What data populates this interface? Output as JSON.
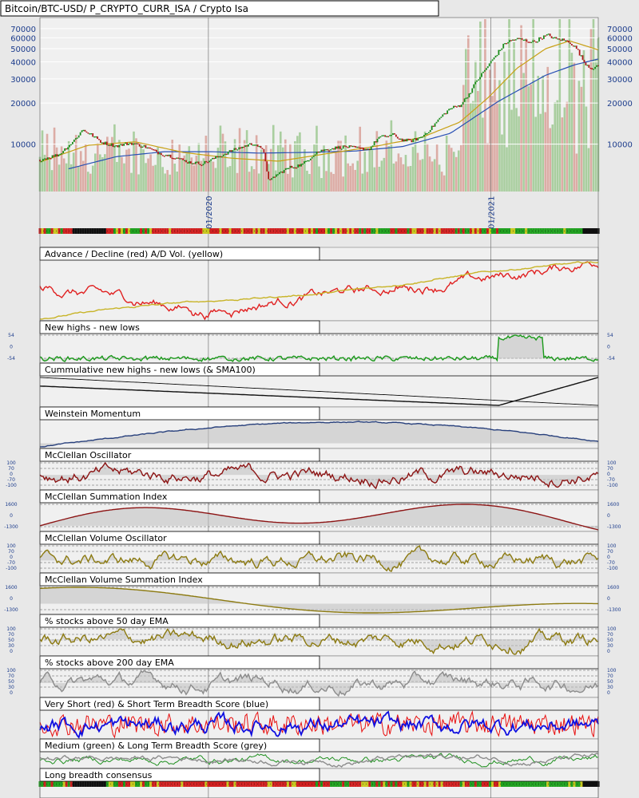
{
  "chart_data": {
    "type": "line",
    "title": "Bitcoin/BTC-USD/ P_CRYPTO_CURR_ISA / Crypto Isa",
    "date_labels": [
      "01/2020",
      "01/2021"
    ],
    "price_axis": {
      "scale": "log",
      "ylim": [
        4500,
        80000
      ],
      "ticks": [
        "70000",
        "60000",
        "50000",
        "40000",
        "30000",
        "20000",
        "10000"
      ]
    },
    "panels": [
      {
        "title": "Advance / Decline (red) A/D Vol. (yellow)",
        "left_ticks": [],
        "right_ticks": []
      },
      {
        "title": "New highs - new lows",
        "left_ticks": [
          "54",
          "0",
          "-54"
        ],
        "right_ticks": [
          "54",
          "0",
          "-54"
        ]
      },
      {
        "title": "Cummulative new highs - new lows (& SMA100)",
        "left_ticks": [],
        "right_ticks": []
      },
      {
        "title": "Weinstein Momentum",
        "left_ticks": [],
        "right_ticks": []
      },
      {
        "title": "McClellan Oscillator",
        "left_ticks": [
          "100",
          "70",
          "0",
          "-70",
          "-100"
        ],
        "right_ticks": [
          "100",
          "70",
          "0",
          "-70",
          "-100"
        ]
      },
      {
        "title": "McClellan Summation Index",
        "left_ticks": [
          "1600",
          "0",
          "-1300"
        ],
        "right_ticks": [
          "1600",
          "0",
          "-1300"
        ]
      },
      {
        "title": "McClellan Volume Oscillator",
        "left_ticks": [
          "100",
          "70",
          "0",
          "-70",
          "-100"
        ],
        "right_ticks": [
          "100",
          "70",
          "0",
          "-70",
          "-100"
        ]
      },
      {
        "title": "McClellan Volume Summation Index",
        "left_ticks": [
          "1600",
          "0",
          "-1300"
        ],
        "right_ticks": [
          "1600",
          "0",
          "-1300"
        ]
      },
      {
        "title": "% stocks above 50 day EMA",
        "left_ticks": [
          "100",
          "70",
          "50",
          "30",
          "0"
        ],
        "right_ticks": [
          "100",
          "70",
          "50",
          "30",
          "0"
        ]
      },
      {
        "title": "% stocks above 200 day EMA",
        "left_ticks": [
          "100",
          "70",
          "50",
          "30",
          "0"
        ],
        "right_ticks": [
          "100",
          "70",
          "50",
          "30",
          "0"
        ]
      },
      {
        "title": "Very Short (red) & Short Term Breadth Score (blue)",
        "left_ticks": [],
        "right_ticks": []
      },
      {
        "title": "Medium (green) & Long Term Breadth Score (grey)",
        "left_ticks": [],
        "right_ticks": []
      },
      {
        "title": "Long breadth consensus",
        "left_ticks": [],
        "right_ticks": []
      }
    ],
    "price_series": [
      {
        "t": 0,
        "v": 7700
      },
      {
        "t": 4,
        "v": 8400
      },
      {
        "t": 7,
        "v": 10500
      },
      {
        "t": 9,
        "v": 12800
      },
      {
        "t": 11,
        "v": 11600
      },
      {
        "t": 13,
        "v": 10300
      },
      {
        "t": 16,
        "v": 9700
      },
      {
        "t": 19,
        "v": 10200
      },
      {
        "t": 22,
        "v": 9600
      },
      {
        "t": 25,
        "v": 8600
      },
      {
        "t": 28,
        "v": 8100
      },
      {
        "t": 31,
        "v": 7400
      },
      {
        "t": 34,
        "v": 7200
      },
      {
        "t": 37,
        "v": 8000
      },
      {
        "t": 40,
        "v": 8900
      },
      {
        "t": 43,
        "v": 9700
      },
      {
        "t": 45,
        "v": 10200
      },
      {
        "t": 47,
        "v": 8700
      },
      {
        "t": 48,
        "v": 5200
      },
      {
        "t": 49,
        "v": 5800
      },
      {
        "t": 52,
        "v": 6700
      },
      {
        "t": 55,
        "v": 7100
      },
      {
        "t": 58,
        "v": 8800
      },
      {
        "t": 61,
        "v": 9300
      },
      {
        "t": 64,
        "v": 9600
      },
      {
        "t": 67,
        "v": 9300
      },
      {
        "t": 69,
        "v": 9200
      },
      {
        "t": 71,
        "v": 11200
      },
      {
        "t": 74,
        "v": 11700
      },
      {
        "t": 76,
        "v": 10700
      },
      {
        "t": 78,
        "v": 10600
      },
      {
        "t": 80,
        "v": 11300
      },
      {
        "t": 82,
        "v": 13100
      },
      {
        "t": 84,
        "v": 15800
      },
      {
        "t": 86,
        "v": 18300
      },
      {
        "t": 88,
        "v": 19200
      },
      {
        "t": 90,
        "v": 23500
      },
      {
        "t": 91.5,
        "v": 29000
      },
      {
        "t": 93,
        "v": 34000
      },
      {
        "t": 94.5,
        "v": 40000
      },
      {
        "t": 96,
        "v": 47000
      },
      {
        "t": 97.5,
        "v": 55000
      },
      {
        "t": 99,
        "v": 58000
      },
      {
        "t": 100.5,
        "v": 59000
      },
      {
        "t": 102,
        "v": 57000
      },
      {
        "t": 103.5,
        "v": 56000
      },
      {
        "t": 105,
        "v": 60000
      },
      {
        "t": 106.5,
        "v": 63000
      },
      {
        "t": 108,
        "v": 59000
      },
      {
        "t": 109.5,
        "v": 58000
      },
      {
        "t": 111,
        "v": 56000
      },
      {
        "t": 112.5,
        "v": 50000
      },
      {
        "t": 114,
        "v": 40000
      },
      {
        "t": 115.5,
        "v": 36000
      },
      {
        "t": 117,
        "v": 37000
      }
    ],
    "sma_slow": [
      {
        "t": 6,
        "v": 6600
      },
      {
        "t": 16,
        "v": 8100
      },
      {
        "t": 26,
        "v": 8800
      },
      {
        "t": 36,
        "v": 8800
      },
      {
        "t": 46,
        "v": 8600
      },
      {
        "t": 56,
        "v": 8700
      },
      {
        "t": 66,
        "v": 8900
      },
      {
        "t": 76,
        "v": 9600
      },
      {
        "t": 86,
        "v": 12000
      },
      {
        "t": 96,
        "v": 20500
      },
      {
        "t": 106,
        "v": 32000
      },
      {
        "t": 112,
        "v": 38000
      },
      {
        "t": 117,
        "v": 42000
      }
    ],
    "sma_fast": [
      {
        "t": 0,
        "v": 7400
      },
      {
        "t": 10,
        "v": 9800
      },
      {
        "t": 20,
        "v": 10400
      },
      {
        "t": 30,
        "v": 8700
      },
      {
        "t": 40,
        "v": 7900
      },
      {
        "t": 50,
        "v": 7500
      },
      {
        "t": 60,
        "v": 8500
      },
      {
        "t": 70,
        "v": 9600
      },
      {
        "t": 80,
        "v": 11200
      },
      {
        "t": 88,
        "v": 14500
      },
      {
        "t": 94,
        "v": 22000
      },
      {
        "t": 100,
        "v": 36000
      },
      {
        "t": 106,
        "v": 50000
      },
      {
        "t": 111,
        "v": 57000
      },
      {
        "t": 117,
        "v": 49000
      }
    ],
    "xlim": [
      0,
      117
    ]
  },
  "colors": {
    "price_up": "#1a8c1a",
    "price_down": "#b01818",
    "sma_slow": "#2850b4",
    "sma_fast": "#c8a014",
    "vol_up": "#9cc890",
    "vol_down": "#d8a098",
    "ad_red": "#e02020",
    "ad_yellow": "#c8b428",
    "highs_lows": "#1a9a1a",
    "cum_line": "#101010",
    "weinstein": "#28407c",
    "mcclellan": "#8c1414",
    "mcc_volume": "#8c7a10",
    "ema200": "#8c8c8c",
    "short_red": "#e81010",
    "short_blue": "#1010e0",
    "medium_green": "#209020",
    "long_grey": "#8c8c8c",
    "axis_text": "#1c3c8c",
    "fill_grey": "#c0c0c0"
  }
}
